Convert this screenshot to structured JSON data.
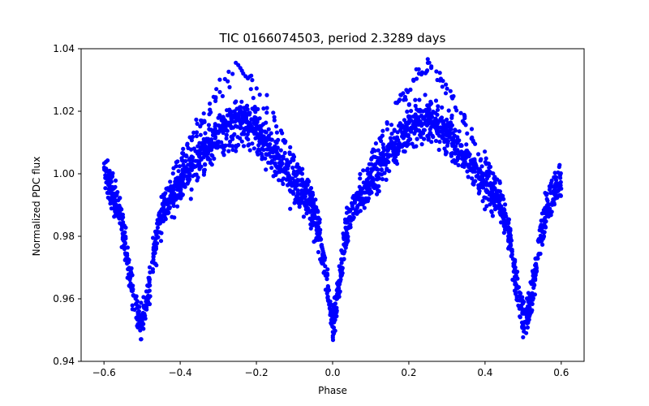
{
  "chart_data": {
    "type": "scatter",
    "title": "TIC 0166074503, period 2.3289 days",
    "xlabel": "Phase",
    "ylabel": "Normalized PDC flux",
    "xlim": [
      -0.66,
      0.66
    ],
    "ylim": [
      0.94,
      1.04
    ],
    "xticks": [
      -0.6,
      -0.4,
      -0.2,
      0.0,
      0.2,
      0.4,
      0.6
    ],
    "xtick_labels": [
      "−0.6",
      "−0.4",
      "−0.2",
      "0.0",
      "0.2",
      "0.4",
      "0.6"
    ],
    "yticks": [
      0.94,
      0.96,
      0.98,
      1.0,
      1.02,
      1.04
    ],
    "ytick_labels": [
      "0.94",
      "0.96",
      "0.98",
      "1.00",
      "1.02",
      "1.04"
    ],
    "grid": false,
    "marker_color": "#0000ff",
    "phase_range": [
      -0.6,
      0.6
    ],
    "envelope": [
      {
        "x": -0.6,
        "y": 1.0
      },
      {
        "x": -0.58,
        "y": 0.994
      },
      {
        "x": -0.56,
        "y": 0.988
      },
      {
        "x": -0.54,
        "y": 0.974
      },
      {
        "x": -0.52,
        "y": 0.958
      },
      {
        "x": -0.5,
        "y": 0.952
      },
      {
        "x": -0.48,
        "y": 0.965
      },
      {
        "x": -0.46,
        "y": 0.982
      },
      {
        "x": -0.44,
        "y": 0.99
      },
      {
        "x": -0.4,
        "y": 0.997
      },
      {
        "x": -0.35,
        "y": 1.005
      },
      {
        "x": -0.3,
        "y": 1.013
      },
      {
        "x": -0.25,
        "y": 1.018
      },
      {
        "x": -0.2,
        "y": 1.015
      },
      {
        "x": -0.15,
        "y": 1.006
      },
      {
        "x": -0.1,
        "y": 0.997
      },
      {
        "x": -0.06,
        "y": 0.99
      },
      {
        "x": -0.04,
        "y": 0.983
      },
      {
        "x": -0.02,
        "y": 0.97
      },
      {
        "x": 0.0,
        "y": 0.95
      },
      {
        "x": 0.02,
        "y": 0.968
      },
      {
        "x": 0.04,
        "y": 0.984
      },
      {
        "x": 0.06,
        "y": 0.99
      },
      {
        "x": 0.1,
        "y": 0.998
      },
      {
        "x": 0.15,
        "y": 1.007
      },
      {
        "x": 0.2,
        "y": 1.015
      },
      {
        "x": 0.25,
        "y": 1.019
      },
      {
        "x": 0.3,
        "y": 1.014
      },
      {
        "x": 0.35,
        "y": 1.005
      },
      {
        "x": 0.4,
        "y": 0.997
      },
      {
        "x": 0.44,
        "y": 0.99
      },
      {
        "x": 0.46,
        "y": 0.982
      },
      {
        "x": 0.48,
        "y": 0.966
      },
      {
        "x": 0.5,
        "y": 0.953
      },
      {
        "x": 0.52,
        "y": 0.958
      },
      {
        "x": 0.54,
        "y": 0.975
      },
      {
        "x": 0.56,
        "y": 0.988
      },
      {
        "x": 0.58,
        "y": 0.994
      },
      {
        "x": 0.6,
        "y": 0.998
      }
    ]
  }
}
